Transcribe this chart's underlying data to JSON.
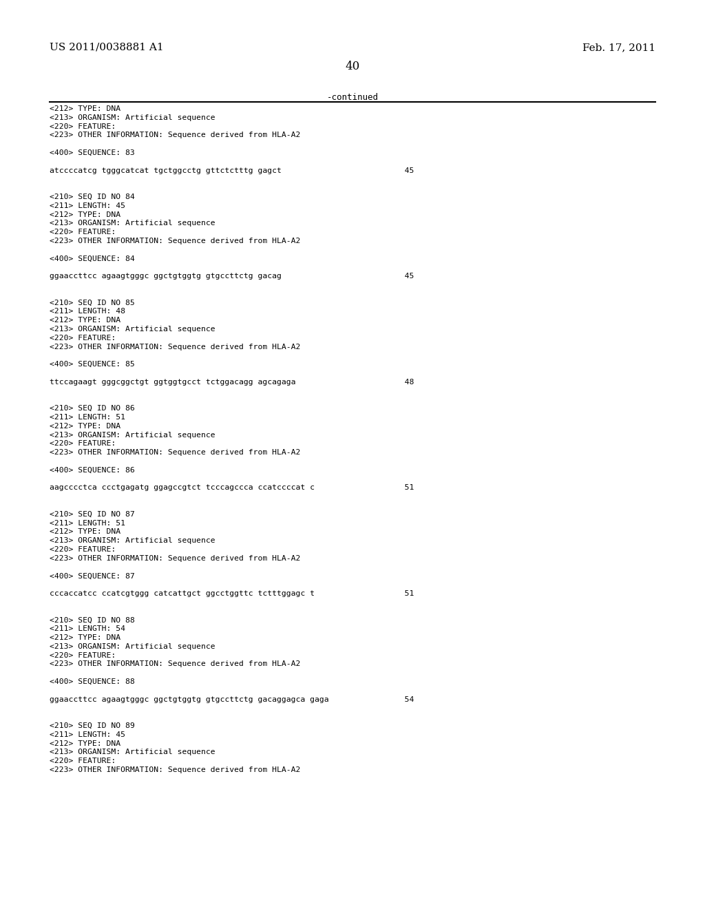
{
  "header_left": "US 2011/0038881 A1",
  "header_right": "Feb. 17, 2011",
  "page_number": "40",
  "continued_label": "-continued",
  "bg_color": "#ffffff",
  "text_color": "#000000",
  "lines": [
    "<212> TYPE: DNA",
    "<213> ORGANISM: Artificial sequence",
    "<220> FEATURE:",
    "<223> OTHER INFORMATION: Sequence derived from HLA-A2",
    "",
    "<400> SEQUENCE: 83",
    "",
    "atccccatcg tgggcatcat tgctggcctg gttctctttg gagct                          45",
    "",
    "",
    "<210> SEQ ID NO 84",
    "<211> LENGTH: 45",
    "<212> TYPE: DNA",
    "<213> ORGANISM: Artificial sequence",
    "<220> FEATURE:",
    "<223> OTHER INFORMATION: Sequence derived from HLA-A2",
    "",
    "<400> SEQUENCE: 84",
    "",
    "ggaaccttcc agaagtgggc ggctgtggtg gtgccttctg gacag                          45",
    "",
    "",
    "<210> SEQ ID NO 85",
    "<211> LENGTH: 48",
    "<212> TYPE: DNA",
    "<213> ORGANISM: Artificial sequence",
    "<220> FEATURE:",
    "<223> OTHER INFORMATION: Sequence derived from HLA-A2",
    "",
    "<400> SEQUENCE: 85",
    "",
    "ttccagaagt gggcggctgt ggtggtgcct tctggacagg agcagaga                       48",
    "",
    "",
    "<210> SEQ ID NO 86",
    "<211> LENGTH: 51",
    "<212> TYPE: DNA",
    "<213> ORGANISM: Artificial sequence",
    "<220> FEATURE:",
    "<223> OTHER INFORMATION: Sequence derived from HLA-A2",
    "",
    "<400> SEQUENCE: 86",
    "",
    "aagcccctca ccctgagatg ggagccgtct tcccagccca ccatccccat c                   51",
    "",
    "",
    "<210> SEQ ID NO 87",
    "<211> LENGTH: 51",
    "<212> TYPE: DNA",
    "<213> ORGANISM: Artificial sequence",
    "<220> FEATURE:",
    "<223> OTHER INFORMATION: Sequence derived from HLA-A2",
    "",
    "<400> SEQUENCE: 87",
    "",
    "cccaccatcc ccatcgtggg catcattgct ggcctggttc tctttggagc t                   51",
    "",
    "",
    "<210> SEQ ID NO 88",
    "<211> LENGTH: 54",
    "<212> TYPE: DNA",
    "<213> ORGANISM: Artificial sequence",
    "<220> FEATURE:",
    "<223> OTHER INFORMATION: Sequence derived from HLA-A2",
    "",
    "<400> SEQUENCE: 88",
    "",
    "ggaaccttcc agaagtgggc ggctgtggtg gtgccttctg gacaggagca gaga                54",
    "",
    "",
    "<210> SEQ ID NO 89",
    "<211> LENGTH: 45",
    "<212> TYPE: DNA",
    "<213> ORGANISM: Artificial sequence",
    "<220> FEATURE:",
    "<223> OTHER INFORMATION: Sequence derived from HLA-A2"
  ]
}
